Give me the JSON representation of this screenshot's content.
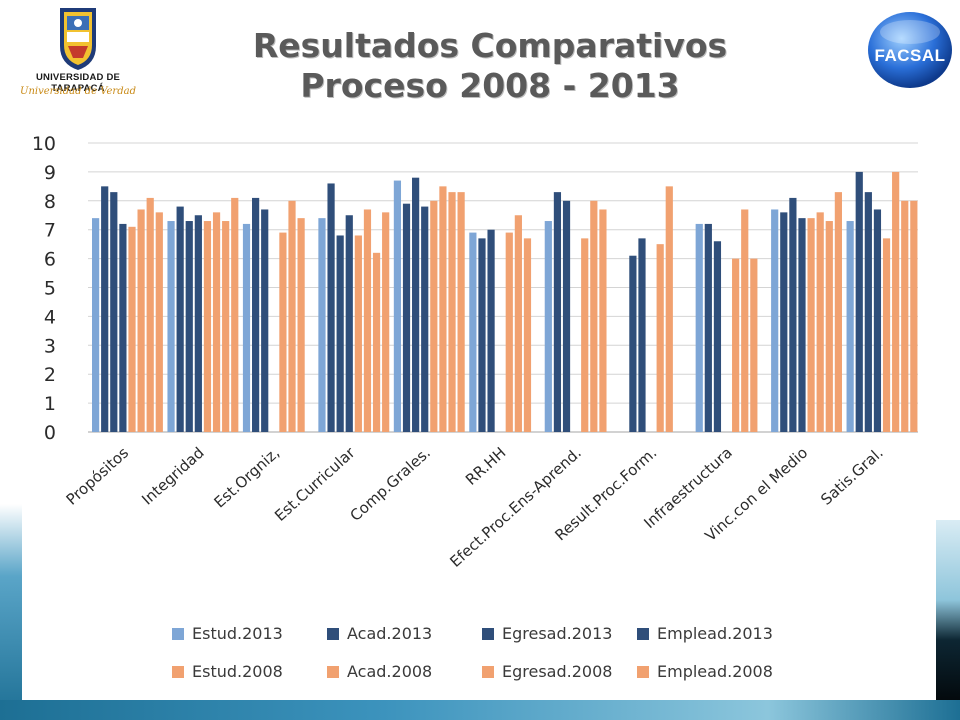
{
  "header": {
    "title_line1": "Resultados Comparativos",
    "title_line2": "Proceso 2008 - 2013",
    "left_logo": {
      "name": "UNIVERSIDAD DE TARAPACÁ",
      "motto": "Universidad de Verdad"
    },
    "right_logo": {
      "text": "FACSAL"
    }
  },
  "colors": {
    "light_blue": "#7ea6d6",
    "dark_blue": "#2f4e7a",
    "salmon": "#f1a170",
    "gridline": "#d4d4d4",
    "axis": "#a6a6a6"
  },
  "chart_data": {
    "type": "bar",
    "categories": [
      "Propósitos",
      "Integridad",
      "Est.Orgniz,",
      "Est.Curricular",
      "Comp.Grales.",
      "RR.HH",
      "Efect.Proc.Ens-Aprend.",
      "Result.Proc.Form.",
      "Infraestructura",
      "Vinc.con el Medio",
      "Satis.Gral."
    ],
    "ylim": [
      0,
      10
    ],
    "yticks": [
      "0",
      "1",
      "2",
      "3",
      "4",
      "5",
      "6",
      "7",
      "8",
      "9",
      "10"
    ],
    "grid": true,
    "legend_position": "bottom",
    "series": [
      {
        "name": "Estud.2013",
        "color": "#7ea6d6",
        "values": [
          7.4,
          7.3,
          7.2,
          7.4,
          8.7,
          6.9,
          7.3,
          null,
          7.2,
          7.7,
          7.3
        ]
      },
      {
        "name": "Acad.2013",
        "color": "#2f4e7a",
        "values": [
          8.5,
          7.8,
          8.1,
          8.6,
          7.9,
          6.7,
          8.3,
          6.1,
          7.2,
          7.6,
          9.0
        ]
      },
      {
        "name": "Egresad.2013",
        "color": "#2f4e7a",
        "values": [
          8.3,
          7.3,
          7.7,
          6.8,
          8.8,
          7.0,
          8.0,
          6.7,
          6.6,
          8.1,
          8.3
        ]
      },
      {
        "name": "Emplead.2013",
        "color": "#2f4e7a",
        "values": [
          7.2,
          7.5,
          null,
          7.5,
          7.8,
          null,
          null,
          null,
          null,
          7.4,
          7.7
        ]
      },
      {
        "name": "Estud.2008",
        "color": "#f1a170",
        "values": [
          7.1,
          7.3,
          6.9,
          6.8,
          8.0,
          6.9,
          6.7,
          6.5,
          6.0,
          7.4,
          6.7
        ]
      },
      {
        "name": "Acad.2008",
        "color": "#f1a170",
        "values": [
          7.7,
          7.6,
          8.0,
          7.7,
          8.5,
          7.5,
          8.0,
          8.5,
          7.7,
          7.6,
          9.0
        ]
      },
      {
        "name": "Egresad.2008",
        "color": "#f1a170",
        "values": [
          8.1,
          7.3,
          7.4,
          6.2,
          8.3,
          6.7,
          7.7,
          null,
          6.0,
          7.3,
          8.0
        ]
      },
      {
        "name": "Emplead.2008",
        "color": "#f1a170",
        "values": [
          7.6,
          8.1,
          null,
          7.6,
          8.3,
          null,
          null,
          null,
          null,
          8.3,
          8.0
        ]
      }
    ]
  },
  "legend": {
    "items": [
      {
        "label": "Estud.2013",
        "color": "#7ea6d6"
      },
      {
        "label": "Acad.2013",
        "color": "#2f4e7a"
      },
      {
        "label": "Egresad.2013",
        "color": "#2f4e7a"
      },
      {
        "label": "Emplead.2013",
        "color": "#2f4e7a"
      },
      {
        "label": "Estud.2008",
        "color": "#f1a170"
      },
      {
        "label": "Acad.2008",
        "color": "#f1a170"
      },
      {
        "label": "Egresad.2008",
        "color": "#f1a170"
      },
      {
        "label": "Emplead.2008",
        "color": "#f1a170"
      }
    ]
  }
}
